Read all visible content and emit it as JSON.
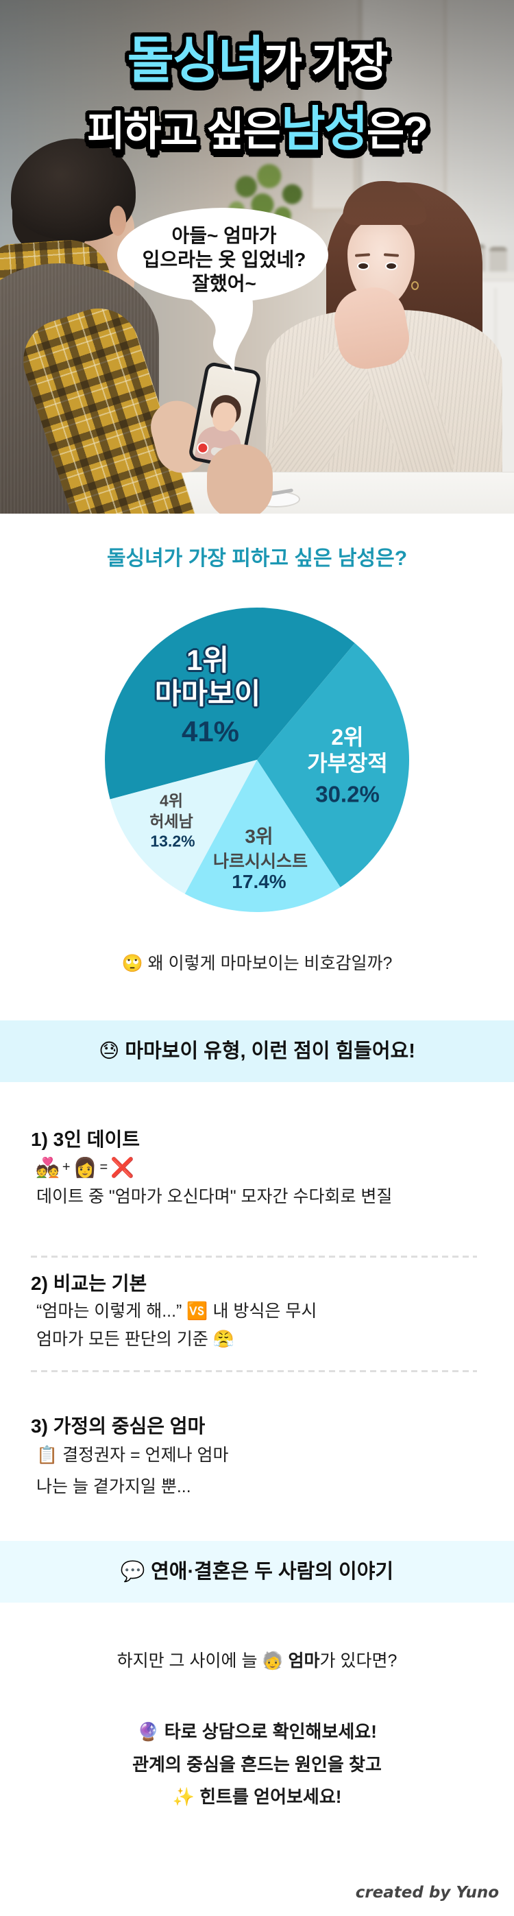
{
  "hero": {
    "title": {
      "line1_highlight": "돌싱녀",
      "line1_rest": "가 가장",
      "line2_pre": "피하고 싶은",
      "line2_highlight": "남성",
      "line2_post": "은?",
      "highlight_color": "#72e3fd"
    },
    "speech_bubble": [
      "아들~ 엄마가",
      "입으라는 옷 입었네?",
      "잘했어~"
    ]
  },
  "survey": {
    "title": "돌싱녀가 가장 피하고 싶은 남성은?",
    "labels": [
      {
        "rank": "1위",
        "name": "마마보이",
        "percent": "41%"
      },
      {
        "rank": "2위",
        "name": "가부장적",
        "percent": "30.2%"
      },
      {
        "rank": "3위",
        "name": "나르시시스트",
        "percent": "17.4%"
      },
      {
        "rank": "4위",
        "name": "허세남",
        "percent": "13.2%"
      }
    ],
    "question": {
      "emoji": "🙄",
      "text": "왜 이렇게 마마보이는 비호감일까?"
    }
  },
  "chart_data": {
    "type": "pie",
    "title": "돌싱녀가 가장 피하고 싶은 남성은?",
    "categories": [
      "마마보이",
      "가부장적",
      "나르시시스트",
      "허세남"
    ],
    "ranks": [
      "1위",
      "2위",
      "3위",
      "4위"
    ],
    "values": [
      41,
      30.2,
      17.4,
      13.2
    ],
    "unit": "%",
    "colors": [
      "#1593b0",
      "#2fb0cb",
      "#8ee8fb",
      "#dcf7fd"
    ],
    "start_angle_deg": 255,
    "direction": "clockwise",
    "legend": "none (labels drawn inside slices)"
  },
  "mamaboy_types": {
    "header": {
      "emoji": "😓",
      "text": "마마보이 유형, 이런 점이 힘들어요!"
    },
    "items": [
      {
        "title": "1) 3인 데이트",
        "emoji_equation": [
          "💑",
          "+",
          "👩",
          "=",
          "❌"
        ],
        "description": "데이트 중 \"엄마가 오신다며\" 모자간 수다회로 변질"
      },
      {
        "title": "2) 비교는 기본",
        "line1": {
          "quote": "“엄마는 이렇게 해...”",
          "emoji": "🆚",
          "text": "내 방식은 무시"
        },
        "line2": {
          "text": "엄마가 모든 판단의 기준",
          "emoji": "😤"
        }
      },
      {
        "title": "3) 가정의 중심은 엄마",
        "line1": {
          "emoji": "📋",
          "text": "결정권자 = 언제나 엄마"
        },
        "line2": {
          "text": "나는 늘 곁가지일 뿐..."
        }
      }
    ]
  },
  "closing": {
    "header": {
      "emoji": "💬",
      "text": "연애·결혼은 두 사람의 이야기"
    },
    "line1": {
      "pre": "하지만 그 사이에 늘",
      "emoji": "🧓",
      "bold": "엄마",
      "post": "가 있다면?"
    },
    "line2": {
      "emoji": "🔮",
      "bold": "타로 상담",
      "post": "으로 확인해보세요!"
    },
    "line3": "관계의 중심을 흔드는 원인을 찾고",
    "line4": {
      "emoji": "✨",
      "text": "힌트를 얻어보세요!"
    }
  },
  "footer": {
    "credit": "created by Yuno"
  },
  "colors": {
    "title_teal": "#1b97b3",
    "band_1": "#ddf6fd",
    "band_2": "#eafaff",
    "label_navy": "#0e3b5e",
    "label_gray": "#484848",
    "divider": "#dedede"
  }
}
